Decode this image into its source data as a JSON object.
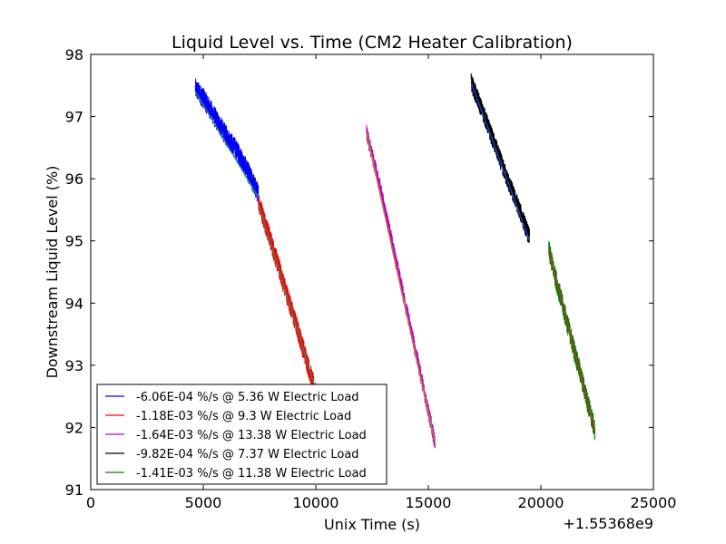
{
  "chart_data": {
    "type": "line",
    "title": "Liquid Level vs. Time (CM2 Heater Calibration)",
    "xlabel": "Unix Time (s)",
    "ylabel": "Downstream Liquid Level (%)",
    "x_offset_label": "+1.55368e9",
    "xlim": [
      0,
      25000
    ],
    "ylim": [
      91,
      98
    ],
    "xticks": [
      0,
      5000,
      10000,
      15000,
      20000,
      25000
    ],
    "xtick_labels": [
      "0",
      "5000",
      "10000",
      "15000",
      "20000",
      "25000"
    ],
    "yticks": [
      91,
      92,
      93,
      94,
      95,
      96,
      97,
      98
    ],
    "ytick_labels": [
      "91",
      "92",
      "93",
      "94",
      "95",
      "96",
      "97",
      "98"
    ],
    "grid": false,
    "legend_position": "lower-left",
    "series": [
      {
        "name": "-6.06E-04 %/s @ 5.36 W Electric Load",
        "color": "#0000ff",
        "noise": 0.17,
        "x": [
          4650,
          5000,
          5500,
          6000,
          6500,
          7000,
          7450
        ],
        "y": [
          97.45,
          97.3,
          97.0,
          96.7,
          96.45,
          96.1,
          95.75
        ],
        "fit": {
          "color": "#2e8b57",
          "x": [
            4650,
            7450
          ],
          "y": [
            97.4,
            95.7
          ]
        }
      },
      {
        "name": "-1.18E-03 %/s @ 9.3 W Electric Load",
        "color": "#ff0000",
        "noise": 0.17,
        "x": [
          7450,
          8000,
          8500,
          9000,
          9500,
          10000
        ],
        "y": [
          95.65,
          95.0,
          94.4,
          93.8,
          93.2,
          92.55
        ],
        "fit": {
          "color": "#2e8b57",
          "x": [
            7450,
            10000
          ],
          "y": [
            95.6,
            92.6
          ]
        }
      },
      {
        "name": "-1.64E-03 %/s @ 13.38 W Electric Load",
        "color": "#bf00bf",
        "noise": 0.13,
        "x": [
          12250,
          12800,
          13400,
          14000,
          14600,
          15300
        ],
        "y": [
          96.75,
          95.95,
          94.95,
          93.95,
          92.95,
          91.75
        ],
        "fit": {
          "color": "#b08040",
          "x": [
            12250,
            15300
          ],
          "y": [
            96.75,
            91.75
          ]
        }
      },
      {
        "name": "-9.82E-04 %/s @ 7.37 W Electric Load",
        "color": "#000000",
        "noise": 0.15,
        "x": [
          16900,
          17500,
          18000,
          18500,
          19000,
          19500
        ],
        "y": [
          97.55,
          97.0,
          96.5,
          96.0,
          95.55,
          95.05
        ],
        "fit": {
          "color": "#1f3fbf",
          "x": [
            16900,
            19500
          ],
          "y": [
            97.55,
            95.0
          ]
        }
      },
      {
        "name": "-1.41E-03 %/s @ 11.38 W Electric Load",
        "color": "#008000",
        "noise": 0.17,
        "x": [
          20350,
          20800,
          21300,
          21800,
          22400
        ],
        "y": [
          94.85,
          94.2,
          93.5,
          92.8,
          91.95
        ],
        "fit": {
          "color": "#c03030",
          "x": [
            20350,
            22400
          ],
          "y": [
            94.85,
            91.95
          ]
        }
      }
    ]
  }
}
